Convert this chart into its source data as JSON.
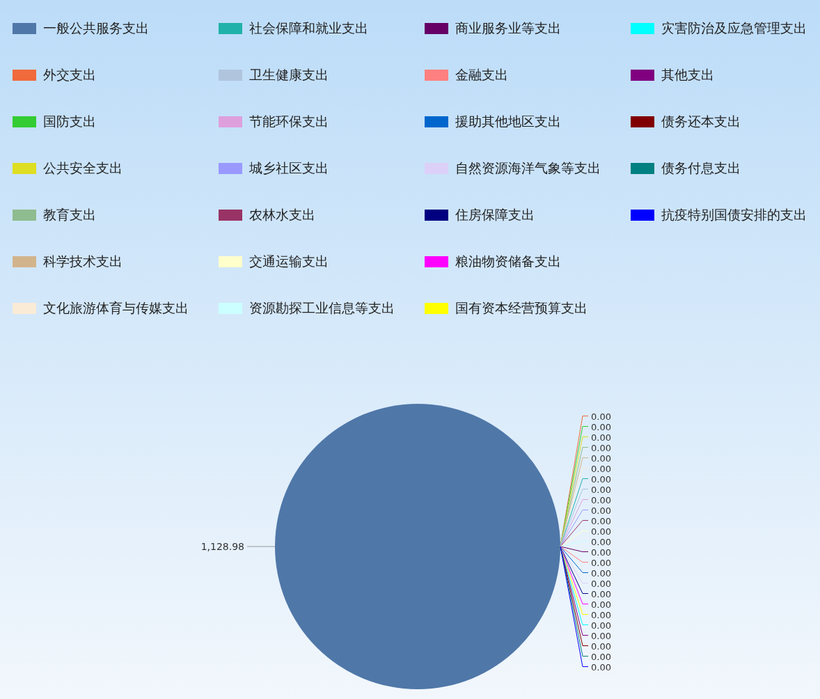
{
  "chart_data": {
    "type": "pie",
    "legend": "top",
    "data_labels": true,
    "categories": [
      "一般公共服务支出",
      "外交支出",
      "国防支出",
      "公共安全支出",
      "教育支出",
      "科学技术支出",
      "文化旅游体育与传媒支出",
      "社会保障和就业支出",
      "卫生健康支出",
      "节能环保支出",
      "城乡社区支出",
      "农林水支出",
      "交通运输支出",
      "资源勘探工业信息等支出",
      "商业服务业等支出",
      "金融支出",
      "援助其他地区支出",
      "自然资源海洋气象等支出",
      "住房保障支出",
      "粮油物资储备支出",
      "国有资本经营预算支出",
      "灾害防治及应急管理支出",
      "其他支出",
      "债务还本支出",
      "债务付息支出",
      "抗疫特别国债安排的支出"
    ],
    "values": [
      1128.98,
      0,
      0,
      0,
      0,
      0,
      0,
      0,
      0,
      0,
      0,
      0,
      0,
      0,
      0,
      0,
      0,
      0,
      0,
      0,
      0,
      0,
      0,
      0,
      0,
      0
    ],
    "value_labels": [
      "1,128.98",
      "0.00",
      "0.00",
      "0.00",
      "0.00",
      "0.00",
      "0.00",
      "0.00",
      "0.00",
      "0.00",
      "0.00",
      "0.00",
      "0.00",
      "0.00",
      "0.00",
      "0.00",
      "0.00",
      "0.00",
      "0.00",
      "0.00",
      "0.00",
      "0.00",
      "0.00",
      "0.00",
      "0.00",
      "0.00"
    ],
    "colors": [
      "#4f77a8",
      "#f06a3c",
      "#33cc33",
      "#dede22",
      "#8fbc8f",
      "#d2b48c",
      "#faebd7",
      "#20b2aa",
      "#b0c4de",
      "#dda0dd",
      "#9999ff",
      "#993366",
      "#ffffcc",
      "#ccffff",
      "#660066",
      "#ff8080",
      "#0066cc",
      "#ddd0f8",
      "#000080",
      "#ff00ff",
      "#ffff00",
      "#00ffff",
      "#800080",
      "#800000",
      "#008080",
      "#0000ff"
    ]
  }
}
